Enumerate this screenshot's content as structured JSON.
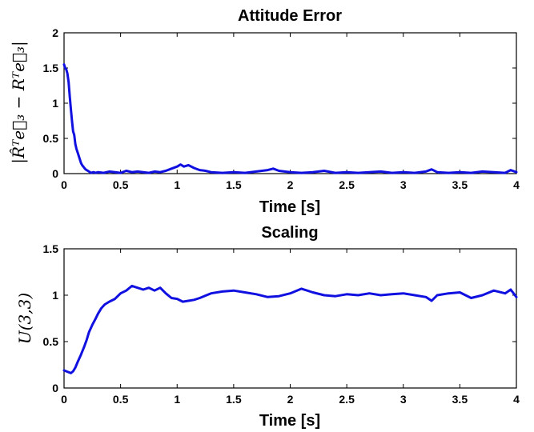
{
  "chart_data": [
    {
      "type": "line",
      "title": "Attitude Error",
      "xlabel": "Time [s]",
      "ylabel": "|R̂ᵀe⃗₃ − Rᵀe⃗₃|",
      "xlim": [
        0,
        4
      ],
      "ylim": [
        0,
        2
      ],
      "xticks": [
        "0",
        "0.5",
        "1",
        "1.5",
        "2",
        "2.5",
        "3",
        "3.5",
        "4"
      ],
      "yticks": [
        "0",
        "0.5",
        "1",
        "1.5",
        "2"
      ],
      "grid": false,
      "line_color": "#1010e0",
      "series": [
        {
          "x": [
            0,
            0.01,
            0.02,
            0.03,
            0.04,
            0.05,
            0.06,
            0.07,
            0.08,
            0.09,
            0.1,
            0.11,
            0.12,
            0.13,
            0.14,
            0.15,
            0.16,
            0.17,
            0.18,
            0.19,
            0.2,
            0.22,
            0.24,
            0.26,
            0.28,
            0.3,
            0.35,
            0.4,
            0.45,
            0.5,
            0.55,
            0.6,
            0.65,
            0.7,
            0.75,
            0.8,
            0.85,
            0.9,
            0.95,
            1.0,
            1.03,
            1.06,
            1.1,
            1.15,
            1.2,
            1.25,
            1.3,
            1.4,
            1.5,
            1.6,
            1.7,
            1.8,
            1.85,
            1.9,
            2.0,
            2.1,
            2.2,
            2.3,
            2.4,
            2.5,
            2.6,
            2.7,
            2.8,
            2.9,
            3.0,
            3.1,
            3.2,
            3.25,
            3.3,
            3.4,
            3.5,
            3.6,
            3.7,
            3.8,
            3.9,
            3.95,
            4.0
          ],
          "y": [
            1.55,
            1.5,
            1.48,
            1.42,
            1.3,
            1.1,
            0.92,
            0.75,
            0.6,
            0.55,
            0.42,
            0.35,
            0.3,
            0.25,
            0.2,
            0.15,
            0.12,
            0.1,
            0.08,
            0.06,
            0.05,
            0.03,
            0.01,
            0.02,
            0.01,
            0.02,
            0.01,
            0.03,
            0.02,
            0.01,
            0.04,
            0.02,
            0.03,
            0.02,
            0.01,
            0.03,
            0.02,
            0.04,
            0.07,
            0.1,
            0.13,
            0.1,
            0.12,
            0.08,
            0.05,
            0.04,
            0.02,
            0.01,
            0.02,
            0.01,
            0.03,
            0.05,
            0.07,
            0.04,
            0.02,
            0.01,
            0.02,
            0.04,
            0.01,
            0.02,
            0.01,
            0.02,
            0.03,
            0.01,
            0.02,
            0.01,
            0.03,
            0.06,
            0.02,
            0.01,
            0.02,
            0.01,
            0.03,
            0.02,
            0.01,
            0.05,
            0.02
          ]
        }
      ]
    },
    {
      "type": "line",
      "title": "Scaling",
      "xlabel": "Time [s]",
      "ylabel": "U(3,3)",
      "xlim": [
        0,
        4
      ],
      "ylim": [
        0,
        1.5
      ],
      "xticks": [
        "0",
        "0.5",
        "1",
        "1.5",
        "2",
        "2.5",
        "3",
        "3.5",
        "4"
      ],
      "yticks": [
        "0",
        "0.5",
        "1",
        "1.5"
      ],
      "grid": false,
      "line_color": "#1010e0",
      "series": [
        {
          "x": [
            0,
            0.02,
            0.04,
            0.06,
            0.08,
            0.1,
            0.12,
            0.15,
            0.18,
            0.2,
            0.22,
            0.25,
            0.28,
            0.3,
            0.33,
            0.36,
            0.4,
            0.45,
            0.5,
            0.55,
            0.6,
            0.65,
            0.7,
            0.75,
            0.8,
            0.85,
            0.9,
            0.95,
            1.0,
            1.05,
            1.1,
            1.15,
            1.2,
            1.3,
            1.4,
            1.5,
            1.6,
            1.7,
            1.8,
            1.9,
            2.0,
            2.1,
            2.2,
            2.3,
            2.4,
            2.5,
            2.6,
            2.7,
            2.8,
            2.9,
            3.0,
            3.1,
            3.2,
            3.25,
            3.3,
            3.4,
            3.5,
            3.6,
            3.7,
            3.8,
            3.9,
            3.95,
            4.0
          ],
          "y": [
            0.19,
            0.18,
            0.17,
            0.16,
            0.18,
            0.22,
            0.28,
            0.36,
            0.45,
            0.52,
            0.6,
            0.68,
            0.75,
            0.8,
            0.86,
            0.9,
            0.93,
            0.96,
            1.02,
            1.05,
            1.1,
            1.08,
            1.06,
            1.08,
            1.05,
            1.08,
            1.02,
            0.97,
            0.96,
            0.93,
            0.94,
            0.95,
            0.97,
            1.02,
            1.04,
            1.05,
            1.03,
            1.01,
            0.98,
            0.99,
            1.02,
            1.07,
            1.03,
            1.0,
            0.99,
            1.01,
            1.0,
            1.02,
            1.0,
            1.01,
            1.02,
            1.0,
            0.98,
            0.94,
            1.0,
            1.02,
            1.03,
            0.97,
            1.0,
            1.05,
            1.02,
            1.06,
            0.98
          ]
        }
      ]
    }
  ]
}
